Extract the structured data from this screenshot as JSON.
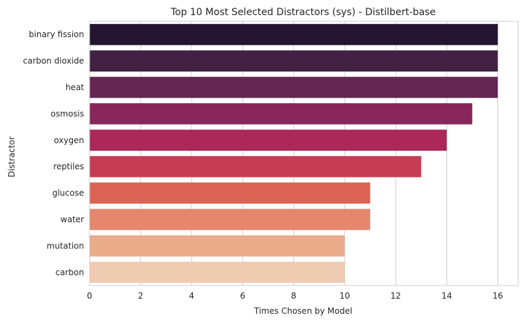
{
  "chart_data": {
    "type": "bar",
    "orientation": "horizontal",
    "title": "Top 10 Most Selected Distractors (sys) - Distilbert-base",
    "xlabel": "Times Chosen by Model",
    "ylabel": "Distractor",
    "categories": [
      "binary fission",
      "carbon dioxide",
      "heat",
      "osmosis",
      "oxygen",
      "reptiles",
      "glucose",
      "water",
      "mutation",
      "carbon"
    ],
    "values": [
      16,
      16,
      16,
      15,
      14,
      13,
      11,
      11,
      10,
      10
    ],
    "colors": [
      "#231530",
      "#432142",
      "#652651",
      "#88265b",
      "#ab2858",
      "#c73c55",
      "#dc6353",
      "#e5876d",
      "#eaab8b",
      "#efcbb2"
    ],
    "xlim": [
      0,
      16.8
    ],
    "xticks": [
      0,
      2,
      4,
      6,
      8,
      10,
      12,
      14,
      16
    ],
    "grid": "x"
  }
}
